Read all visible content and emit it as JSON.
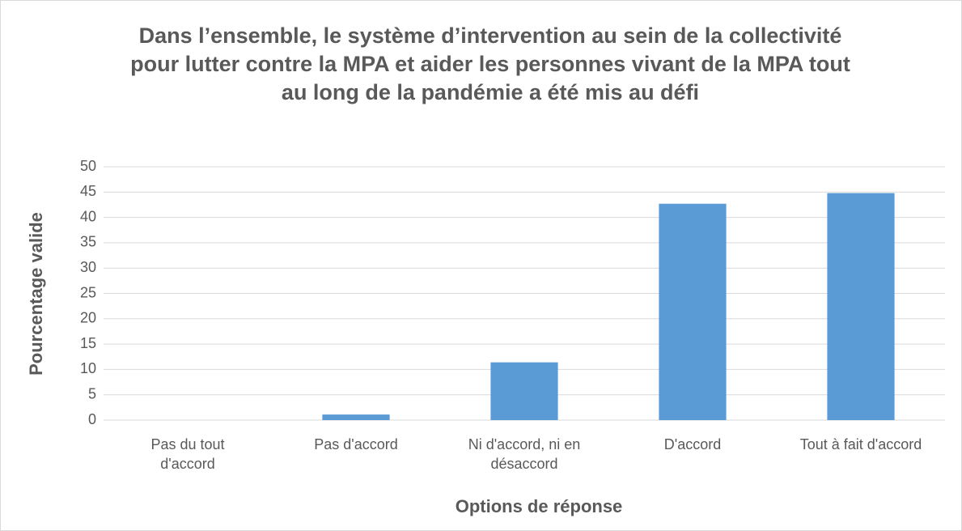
{
  "chart_data": {
    "type": "bar",
    "title": "Dans l’ensemble, le système d’intervention au sein de la collectivité pour lutter contre la MPA et aider les personnes vivant de la MPA tout au long de la pandémie a été mis au défi",
    "x_label": "Options de réponse",
    "y_label": "Pourcentage valide",
    "categories": [
      "Pas du tout d'accord",
      "Pas d'accord",
      "Ni d'accord, ni en désaccord",
      "D'accord",
      "Tout à fait d'accord"
    ],
    "values": [
      0,
      1.1,
      11.4,
      42.7,
      44.8
    ],
    "color": "#5b9bd5",
    "ylim": [
      0,
      50
    ],
    "yticks": [
      0,
      5,
      10,
      15,
      20,
      25,
      30,
      35,
      40,
      45,
      50
    ],
    "grid": true
  }
}
